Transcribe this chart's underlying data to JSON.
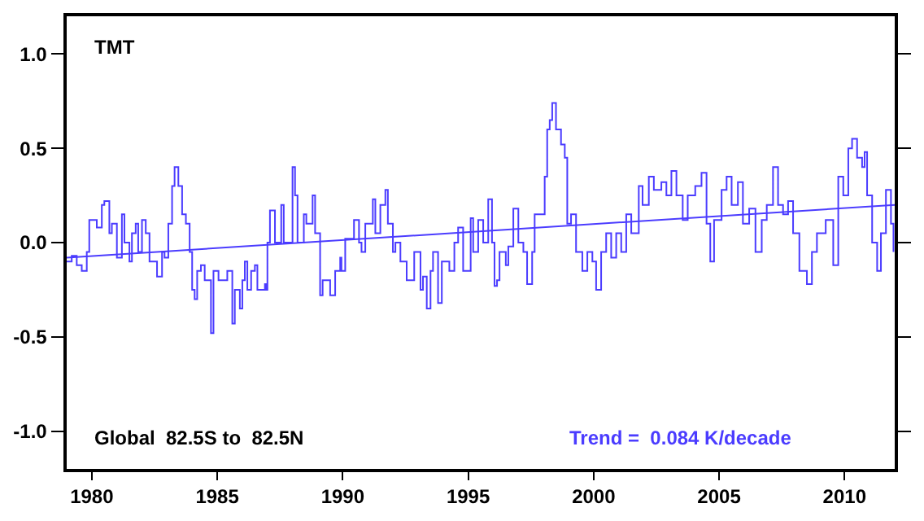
{
  "chart_data": {
    "type": "step",
    "annotations": [
      "TMT",
      "Global  82.5S to  82.5N",
      "Trend =  0.084 K/decade"
    ],
    "xlim": [
      1979,
      2012
    ],
    "xticks": [
      1980,
      1985,
      1990,
      1995,
      2000,
      2005,
      2010
    ],
    "ylim": [
      -1.2,
      1.2
    ],
    "yticks": [
      {
        "value": -1.0,
        "label": "-1.0"
      },
      {
        "value": -0.5,
        "label": "-0.5"
      },
      {
        "value": 0.0,
        "label": "0.0"
      },
      {
        "value": 0.5,
        "label": "0.5"
      },
      {
        "value": 1.0,
        "label": "1.0"
      }
    ],
    "marker": "none",
    "line_style": "solid",
    "series": [
      {
        "color": "#4b3cff",
        "x": [
          1979.0,
          1979.2,
          1979.4,
          1979.6,
          1979.8,
          1979.9,
          1980.2,
          1980.4,
          1980.5,
          1980.7,
          1980.8,
          1981.0,
          1981.2,
          1981.3,
          1981.5,
          1981.6,
          1981.75,
          1981.85,
          1982.0,
          1982.15,
          1982.3,
          1982.6,
          1982.8,
          1982.9,
          1983.05,
          1983.2,
          1983.3,
          1983.45,
          1983.6,
          1983.75,
          1983.9,
          1984.0,
          1984.1,
          1984.2,
          1984.35,
          1984.5,
          1984.75,
          1984.85,
          1985.05,
          1985.4,
          1985.6,
          1985.7,
          1985.9,
          1986.0,
          1986.1,
          1986.2,
          1986.35,
          1986.5,
          1986.6,
          1986.9,
          1986.95,
          1987.0,
          1987.1,
          1987.3,
          1987.55,
          1987.65,
          1988.0,
          1988.1,
          1988.2,
          1988.45,
          1988.55,
          1988.8,
          1988.9,
          1989.1,
          1989.2,
          1989.5,
          1989.7,
          1989.9,
          1989.95,
          1990.1,
          1990.45,
          1990.65,
          1990.75,
          1990.9,
          1991.2,
          1991.3,
          1991.5,
          1991.7,
          1991.8,
          1992.0,
          1992.1,
          1992.3,
          1992.55,
          1992.85,
          1993.1,
          1993.2,
          1993.35,
          1993.5,
          1993.6,
          1993.8,
          1993.95,
          1994.25,
          1994.45,
          1994.6,
          1994.8,
          1995.1,
          1995.2,
          1995.4,
          1995.6,
          1995.8,
          1995.95,
          1996.05,
          1996.15,
          1996.25,
          1996.5,
          1996.6,
          1996.8,
          1997.0,
          1997.2,
          1997.35,
          1997.55,
          1997.65,
          1997.95,
          1998.05,
          1998.15,
          1998.25,
          1998.35,
          1998.5,
          1998.7,
          1998.85,
          1998.95,
          1999.1,
          1999.3,
          1999.55,
          1999.75,
          1999.95,
          2000.1,
          2000.3,
          2000.5,
          2000.7,
          2000.9,
          2001.1,
          2001.3,
          2001.5,
          2001.8,
          2001.95,
          2002.2,
          2002.4,
          2002.7,
          2002.9,
          2003.1,
          2003.3,
          2003.55,
          2003.75,
          2004.05,
          2004.3,
          2004.5,
          2004.65,
          2004.8,
          2005.1,
          2005.3,
          2005.5,
          2005.75,
          2005.95,
          2006.2,
          2006.45,
          2006.7,
          2006.9,
          2007.15,
          2007.35,
          2007.55,
          2007.75,
          2007.95,
          2008.2,
          2008.5,
          2008.7,
          2008.9,
          2009.25,
          2009.55,
          2009.75,
          2009.95,
          2010.15,
          2010.3,
          2010.5,
          2010.7,
          2010.8,
          2010.9,
          2011.1,
          2011.3,
          2011.45,
          2011.65,
          2011.85,
          2011.95
        ],
        "values": [
          -0.1,
          -0.07,
          -0.12,
          -0.15,
          -0.05,
          0.12,
          0.08,
          0.2,
          0.22,
          0.05,
          0.1,
          -0.08,
          0.15,
          0.0,
          -0.1,
          0.05,
          0.1,
          -0.05,
          0.12,
          0.05,
          -0.1,
          -0.18,
          -0.05,
          -0.08,
          0.1,
          0.3,
          0.4,
          0.3,
          0.15,
          0.1,
          -0.05,
          -0.25,
          -0.3,
          -0.15,
          -0.12,
          -0.2,
          -0.48,
          -0.15,
          -0.2,
          -0.15,
          -0.43,
          -0.25,
          -0.35,
          -0.2,
          -0.1,
          -0.25,
          -0.15,
          -0.12,
          -0.25,
          -0.22,
          -0.25,
          0.0,
          0.17,
          0.0,
          0.2,
          0.0,
          0.4,
          0.25,
          0.0,
          0.15,
          0.1,
          0.25,
          0.05,
          -0.28,
          -0.2,
          -0.28,
          -0.15,
          -0.08,
          -0.15,
          0.02,
          0.12,
          0.0,
          -0.05,
          0.1,
          0.23,
          0.05,
          0.2,
          0.28,
          0.1,
          -0.05,
          0.0,
          -0.1,
          -0.2,
          -0.05,
          -0.25,
          -0.18,
          -0.35,
          -0.15,
          -0.05,
          -0.32,
          -0.1,
          -0.15,
          0.0,
          0.08,
          -0.15,
          0.13,
          -0.05,
          0.12,
          0.0,
          0.23,
          0.0,
          -0.23,
          -0.2,
          -0.05,
          -0.12,
          -0.02,
          0.18,
          0.0,
          -0.05,
          -0.22,
          -0.05,
          0.15,
          0.15,
          0.35,
          0.6,
          0.65,
          0.74,
          0.6,
          0.52,
          0.45,
          0.1,
          0.15,
          -0.05,
          -0.15,
          -0.05,
          -0.1,
          -0.25,
          -0.05,
          0.05,
          -0.08,
          0.05,
          -0.05,
          0.15,
          0.05,
          0.3,
          0.2,
          0.35,
          0.28,
          0.32,
          0.25,
          0.38,
          0.25,
          0.12,
          0.25,
          0.3,
          0.37,
          0.1,
          -0.1,
          0.12,
          0.28,
          0.35,
          0.2,
          0.32,
          0.1,
          0.18,
          -0.05,
          0.12,
          0.2,
          0.4,
          0.2,
          0.15,
          0.22,
          0.05,
          -0.15,
          -0.22,
          -0.05,
          0.05,
          0.12,
          -0.12,
          0.35,
          0.25,
          0.5,
          0.55,
          0.45,
          0.4,
          0.48,
          0.25,
          0.0,
          -0.15,
          0.05,
          0.28,
          0.1,
          -0.05
        ]
      },
      {
        "type": "line",
        "color": "#4b3cff",
        "x": [
          1979,
          2012
        ],
        "values": [
          -0.08,
          0.2
        ]
      }
    ]
  }
}
